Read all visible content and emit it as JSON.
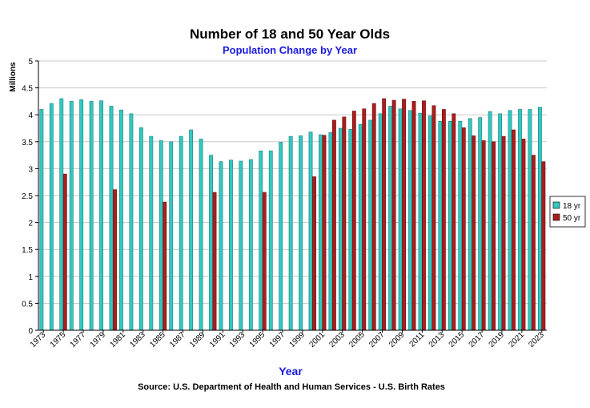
{
  "chart_data": {
    "type": "bar",
    "title": "Number of 18 and 50 Year Olds",
    "subtitle": "Population Change by Year",
    "xlabel": "Year",
    "ylabel": "Millions",
    "source": "Source: U.S. Department of Health and Human Services - U.S. Birth Rates",
    "ylim": [
      0,
      5
    ],
    "yticks": [
      "0",
      "0.5",
      "1",
      "1.5",
      "2",
      "2.5",
      "3",
      "3.5",
      "4",
      "4.5",
      "5"
    ],
    "grid": true,
    "legend_position": "right",
    "categories": [
      1973,
      1974,
      1975,
      1976,
      1977,
      1978,
      1979,
      1980,
      1981,
      1982,
      1983,
      1984,
      1985,
      1986,
      1987,
      1988,
      1989,
      1990,
      1991,
      1992,
      1993,
      1994,
      1995,
      1996,
      1997,
      1998,
      1999,
      2000,
      2001,
      2002,
      2003,
      2004,
      2005,
      2006,
      2007,
      2008,
      2009,
      2010,
      2011,
      2012,
      2013,
      2014,
      2015,
      2016,
      2017,
      2018,
      2019,
      2020,
      2021,
      2022,
      2023
    ],
    "xtick_labels": [
      "1973",
      "1975",
      "1977",
      "1979",
      "1981",
      "1983",
      "1985",
      "1987",
      "1989",
      "1991",
      "1993",
      "1995",
      "1997",
      "1999",
      "2001",
      "2003",
      "2005",
      "2007",
      "2009",
      "2011",
      "2013",
      "2015",
      "2017",
      "2019",
      "2021",
      "2023"
    ],
    "series": [
      {
        "name": "18 yr",
        "color": "#33c7c0",
        "values": [
          4.1,
          4.21,
          4.3,
          4.25,
          4.28,
          4.25,
          4.26,
          4.16,
          4.09,
          4.02,
          3.76,
          3.6,
          3.52,
          3.5,
          3.6,
          3.72,
          3.55,
          3.25,
          3.13,
          3.16,
          3.14,
          3.17,
          3.33,
          3.33,
          3.49,
          3.6,
          3.61,
          3.68,
          3.63,
          3.67,
          3.75,
          3.73,
          3.82,
          3.9,
          4.02,
          4.16,
          4.11,
          4.08,
          4.03,
          3.98,
          3.88,
          3.88,
          3.88,
          3.93,
          3.95,
          4.06,
          4.02,
          4.08,
          4.1,
          4.1,
          4.14
        ]
      },
      {
        "name": "50 yr",
        "color": "#aa1e1e",
        "values": [
          null,
          null,
          2.9,
          null,
          null,
          null,
          null,
          2.61,
          null,
          null,
          null,
          null,
          2.38,
          null,
          null,
          null,
          null,
          2.56,
          null,
          null,
          null,
          null,
          2.56,
          null,
          null,
          null,
          null,
          2.85,
          3.62,
          3.9,
          3.96,
          4.07,
          4.11,
          4.21,
          4.3,
          4.27,
          4.29,
          4.25,
          4.26,
          4.17,
          4.1,
          4.02,
          3.76,
          3.61,
          3.52,
          3.5,
          3.6,
          3.72,
          3.55,
          3.25,
          3.13
        ]
      }
    ]
  }
}
